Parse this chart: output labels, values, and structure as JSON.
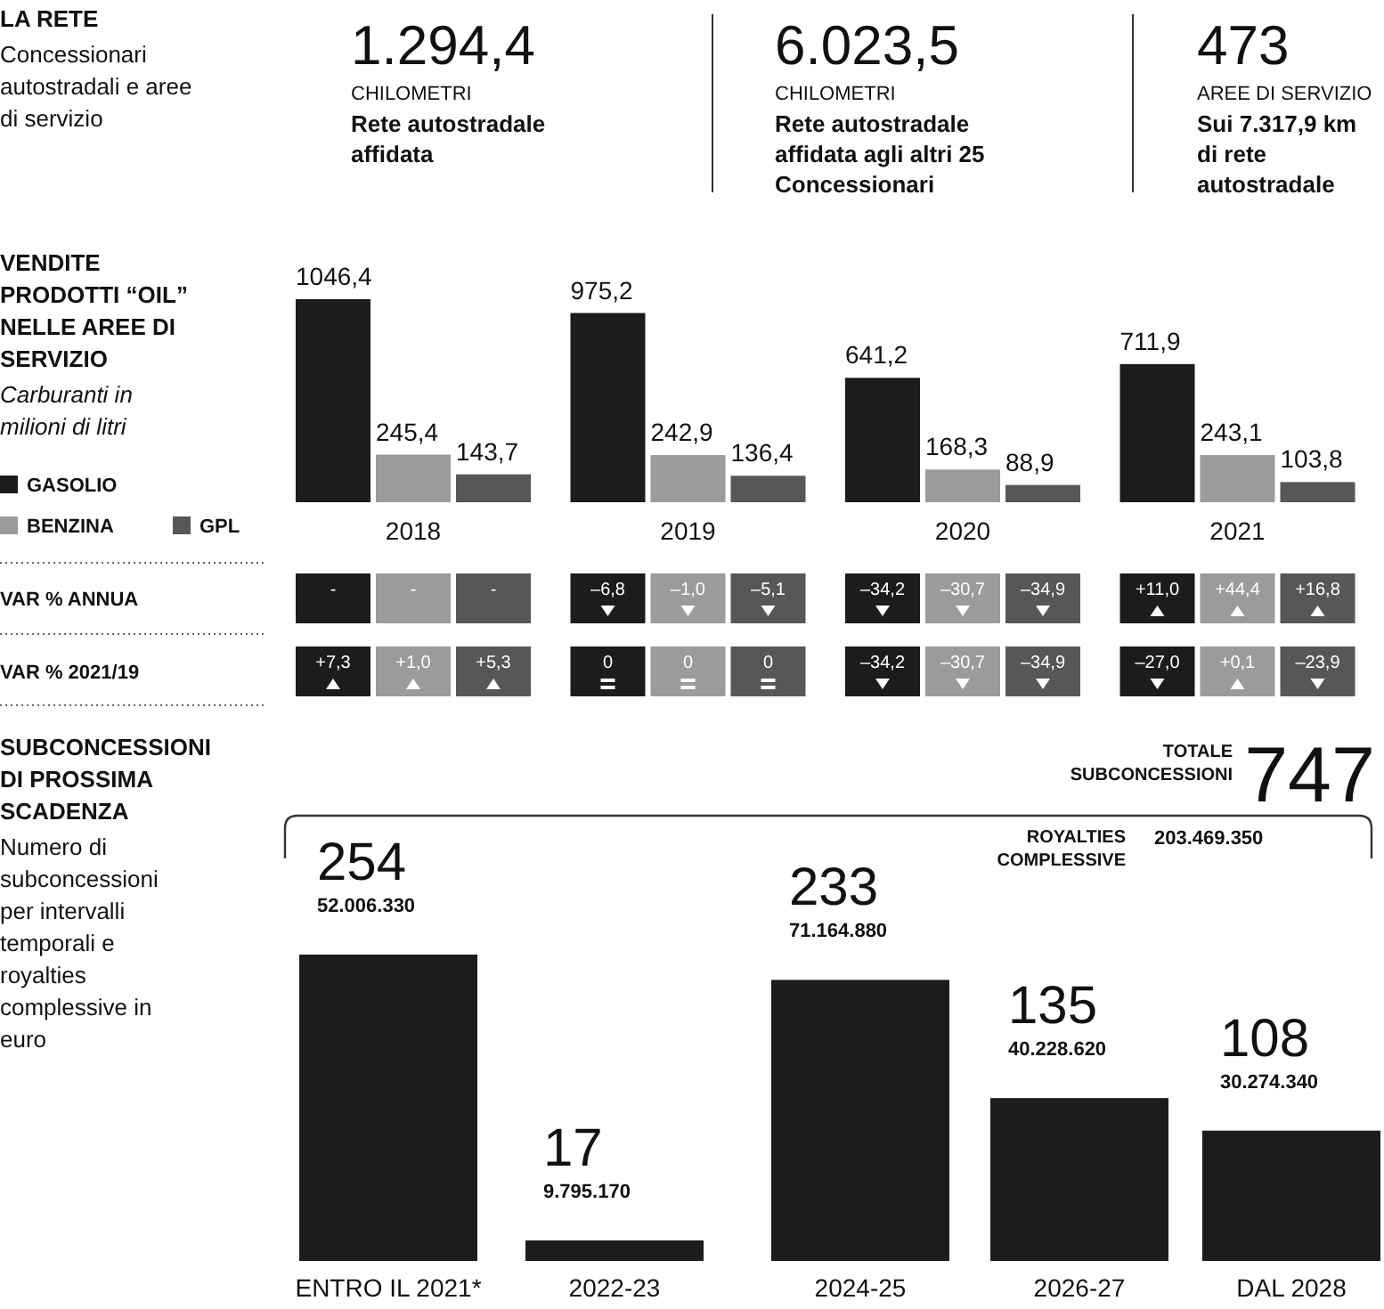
{
  "chart_data": [
    {
      "type": "other",
      "title": "LA RETE",
      "subtitle": "Concessionari autostradali e aree di servizio",
      "annotations": [
        "1.294,4",
        "CHILOMETRI",
        "Rete autostradale affidata",
        "6.023,5",
        "CHILOMETRI",
        "Rete autostradale affidata agli altri 25 Concessionari",
        "473",
        "AREE DI SERVIZIO",
        "Sui 7.317,9 km di rete autostradale"
      ]
    },
    {
      "type": "bar",
      "title": "VENDITE PRODOTTI “OIL” NELLE AREE DI SERVIZIO",
      "ylabel": "Carburanti in milioni di litri",
      "categories": [
        "2018",
        "2019",
        "2020",
        "2021"
      ],
      "series": [
        {
          "name": "GASOLIO",
          "color": "#1c1c1c",
          "values": [
            1046.4,
            975.2,
            641.2,
            711.9
          ],
          "value_labels": [
            "1046,4",
            "975,2",
            "641,2",
            "711,9"
          ]
        },
        {
          "name": "BENZINA",
          "color": "#9b9b9b",
          "values": [
            245.4,
            242.9,
            168.3,
            243.1
          ],
          "value_labels": [
            "245,4",
            "242,9",
            "168,3",
            "243,1"
          ]
        },
        {
          "name": "GPL",
          "color": "#575757",
          "values": [
            143.7,
            136.4,
            88.9,
            103.8
          ],
          "value_labels": [
            "143,7",
            "136,4",
            "88,9",
            "103,8"
          ]
        }
      ],
      "legend": "left",
      "annotations": [
        "VAR % ANNUA",
        "VAR % 2021/19",
        "-",
        "-",
        "-",
        "–6,8",
        "–1,0",
        "–5,1",
        "–34,2",
        "–30,7",
        "–34,9",
        "+11,0",
        "+44,4",
        "+16,8",
        "+7,3",
        "+1,0",
        "+5,3",
        "0",
        "0",
        "0",
        "–34,2",
        "–30,7",
        "–34,9",
        "–27,0",
        "+0,1",
        "–23,9"
      ]
    },
    {
      "type": "bar",
      "title": "SUBCONCESSIONI DI PROSSIMA SCADENZA",
      "subtitle": "Numero di subconcessioni per intervalli temporali e royalties complessive in euro",
      "categories": [
        "ENTRO IL 2021*",
        "2022-23",
        "2024-25",
        "2026-27",
        "DAL 2028"
      ],
      "values": [
        254,
        17,
        233,
        135,
        108
      ],
      "color": "#1c1c1c",
      "data_labels": true,
      "annotations": [
        "TOTALE SUBCONCESSIONI",
        "747",
        "ROYALTIES COMPLESSIVE",
        "203.469.350",
        {
          "text": "52.006.330",
          "x": "ENTRO IL 2021*",
          "y": 254
        },
        {
          "text": "9.795.170",
          "x": "2022-23",
          "y": 17
        },
        {
          "text": "71.164.880",
          "x": "2024-25",
          "y": 233
        },
        {
          "text": "40.228.620",
          "x": "2026-27",
          "y": 135
        },
        {
          "text": "30.274.340",
          "x": "DAL 2028",
          "y": 108
        }
      ]
    }
  ]
}
